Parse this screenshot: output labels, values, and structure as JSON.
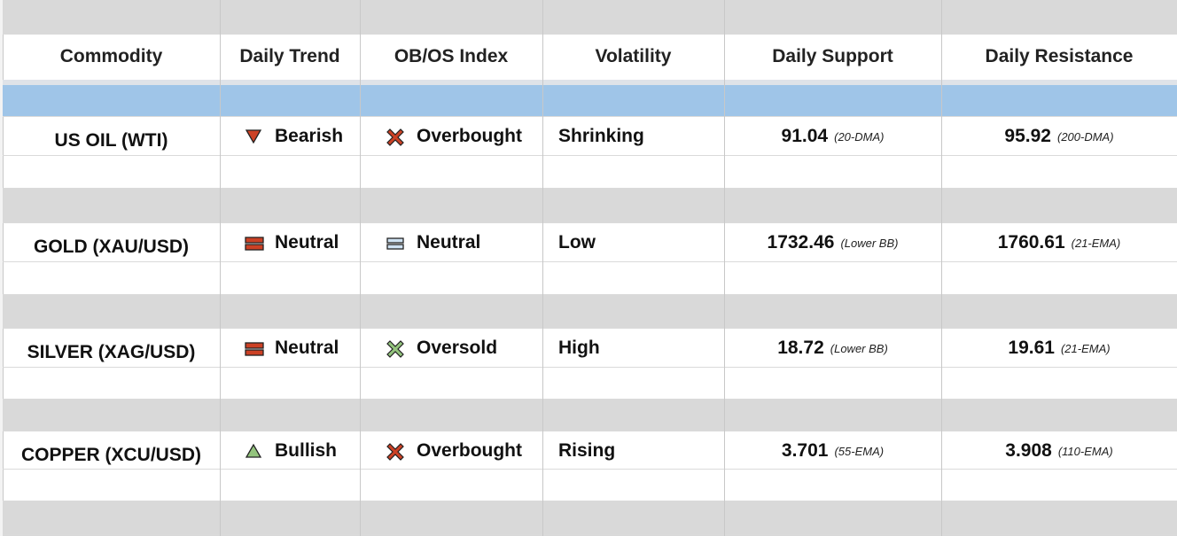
{
  "headers": [
    "Commodity",
    "Daily Trend",
    "OB/OS Index",
    "Volatility",
    "Daily Support",
    "Daily Resistance"
  ],
  "colors": {
    "bearish": "#cc4125",
    "bullish": "#93c47d",
    "neutral_trend": "#cc4125",
    "neutral_index": "#cfe2f3",
    "overbought": "#cc4125",
    "oversold": "#93c47d",
    "band_gray": "#d9d9d9",
    "band_blue": "#9fc5e8"
  },
  "rows": [
    {
      "commodity": "US OIL (WTI)",
      "trend": "Bearish",
      "trend_icon": "triangle-down-icon",
      "index": "Overbought",
      "index_icon": "x-mark-red-icon",
      "volatility": "Shrinking",
      "support": "91.04",
      "support_note": "(20-DMA)",
      "resistance": "95.92",
      "resistance_note": "(200-DMA)"
    },
    {
      "commodity": "GOLD (XAU/USD)",
      "trend": "Neutral",
      "trend_icon": "equals-red-icon",
      "index": "Neutral",
      "index_icon": "equals-blue-icon",
      "volatility": "Low",
      "support": "1732.46",
      "support_note": "(Lower BB)",
      "resistance": "1760.61",
      "resistance_note": "(21-EMA)"
    },
    {
      "commodity": "SILVER (XAG/USD)",
      "trend": "Neutral",
      "trend_icon": "equals-red-icon",
      "index": "Oversold",
      "index_icon": "x-mark-green-icon",
      "volatility": "High",
      "support": "18.72",
      "support_note": "(Lower BB)",
      "resistance": "19.61",
      "resistance_note": "(21-EMA)"
    },
    {
      "commodity": "COPPER (XCU/USD)",
      "trend": "Bullish",
      "trend_icon": "triangle-up-icon",
      "index": "Overbought",
      "index_icon": "x-mark-red-icon",
      "volatility": "Rising",
      "support": "3.701",
      "support_note": "(55-EMA)",
      "resistance": "3.908",
      "resistance_note": "(110-EMA)"
    }
  ]
}
